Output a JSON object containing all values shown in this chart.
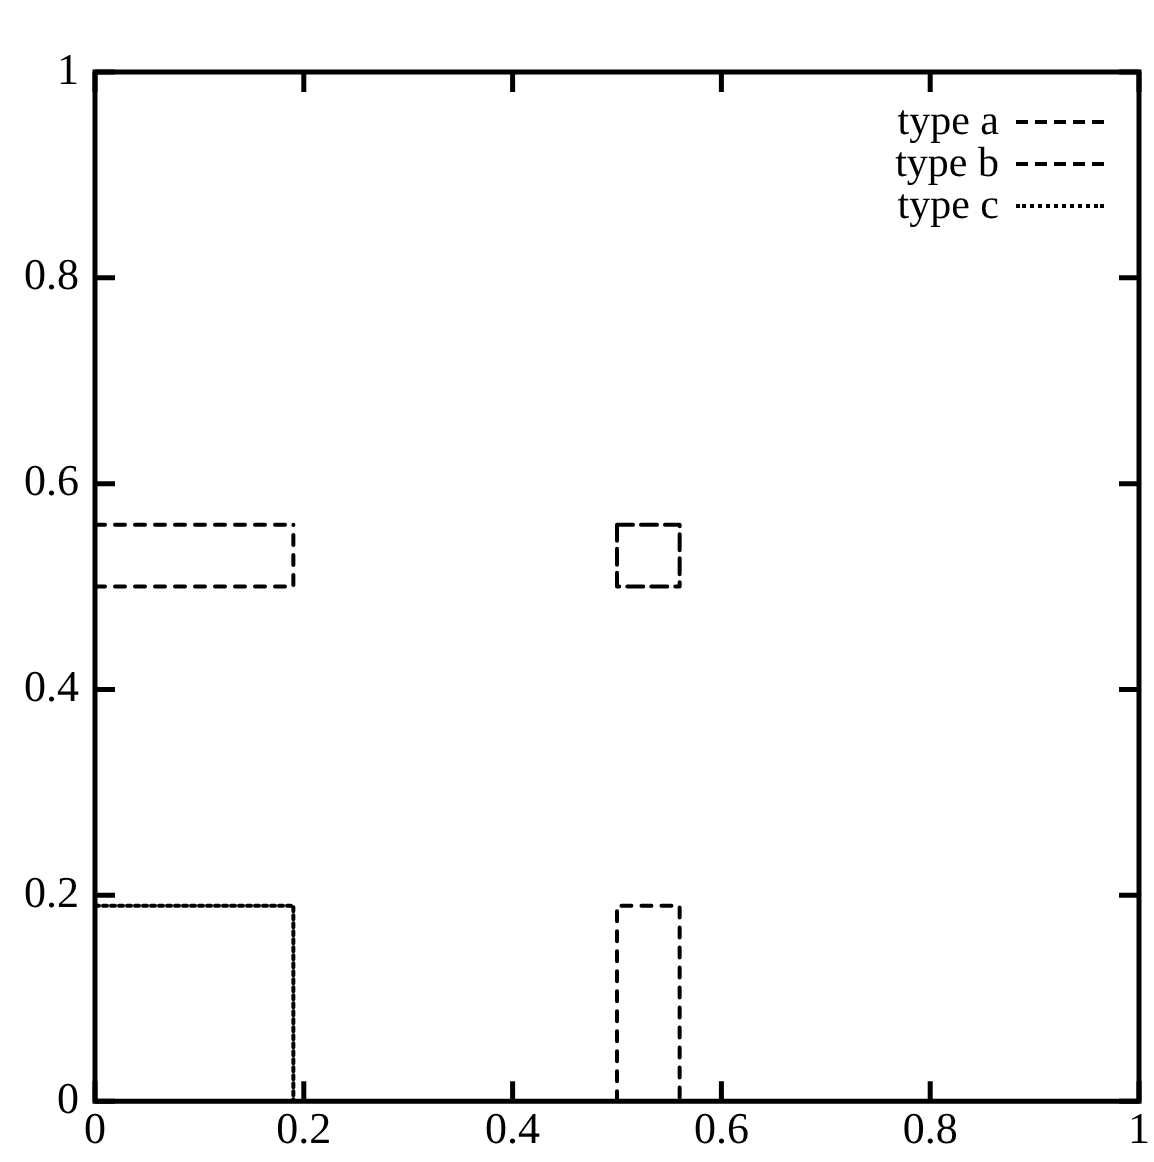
{
  "chart_data": {
    "type": "line",
    "xlim": [
      0,
      1
    ],
    "ylim": [
      0,
      1
    ],
    "xticks": [
      0,
      0.2,
      0.4,
      0.6,
      0.8,
      1
    ],
    "yticks": [
      0,
      0.2,
      0.4,
      0.6,
      0.8,
      1
    ],
    "legend": "top right",
    "grid": false,
    "marker": "none",
    "series": [
      {
        "name": "type a",
        "color": "#000000",
        "line_style": "dashed",
        "x": [
          0.5,
          0.56,
          0.56,
          null,
          0.5,
          0.5,
          0.56
        ],
        "values": [
          0.56,
          0.56,
          0.5,
          null,
          0.56,
          0.5,
          0.5
        ]
      },
      {
        "name": "type b",
        "color": "#000000",
        "line_style": "dashed",
        "x": [
          0,
          0.19,
          null,
          0,
          0.19,
          0.19,
          null,
          0.5,
          0.5,
          0.56,
          0.56
        ],
        "values": [
          0.56,
          0.56,
          null,
          0.5,
          0.5,
          0.56,
          null,
          0,
          0.19,
          0.19,
          0
        ]
      },
      {
        "name": "type c",
        "color": "#000000",
        "line_style": "dotted",
        "x": [
          0,
          0.19,
          0.19
        ],
        "values": [
          0.19,
          0.19,
          0
        ]
      }
    ]
  }
}
